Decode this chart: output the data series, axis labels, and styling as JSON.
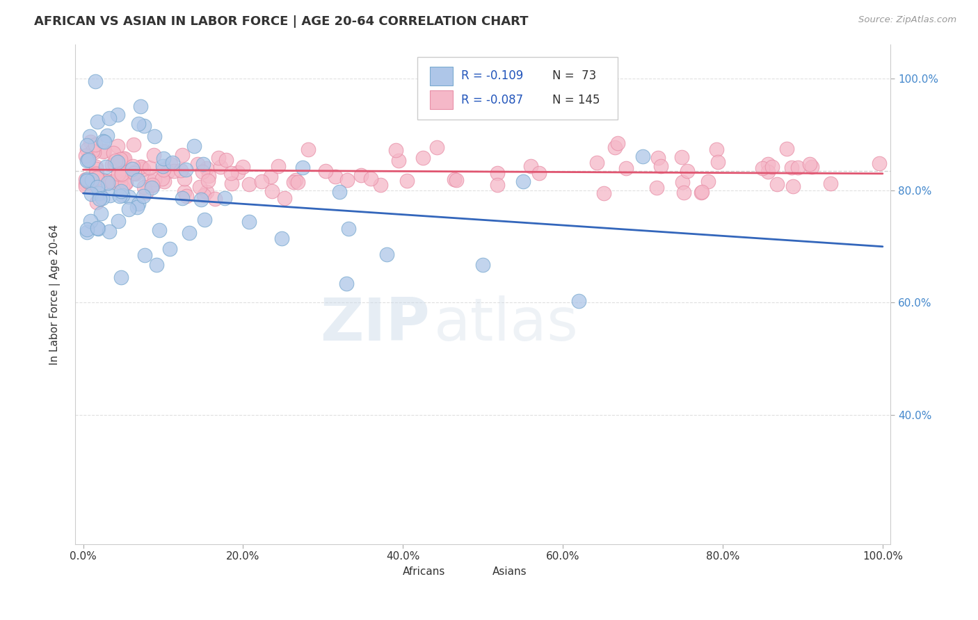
{
  "title": "AFRICAN VS ASIAN IN LABOR FORCE | AGE 20-64 CORRELATION CHART",
  "source_text": "Source: ZipAtlas.com",
  "ylabel": "In Labor Force | Age 20-64",
  "xlim": [
    -0.01,
    1.01
  ],
  "ylim": [
    0.17,
    1.06
  ],
  "xticks": [
    0.0,
    0.2,
    0.4,
    0.6,
    0.8,
    1.0
  ],
  "yticks": [
    0.4,
    0.6,
    0.8,
    1.0
  ],
  "xtick_labels": [
    "0.0%",
    "20.0%",
    "40.0%",
    "60.0%",
    "80.0%",
    "100.0%"
  ],
  "ytick_labels": [
    "40.0%",
    "60.0%",
    "80.0%",
    "100.0%"
  ],
  "african_color": "#aec6e8",
  "asian_color": "#f5b8c8",
  "african_edge_color": "#7aaad0",
  "asian_edge_color": "#e890a8",
  "trend_african_color": "#3366bb",
  "trend_asian_color": "#e05570",
  "trend_ref_color": "#cccccc",
  "legend_R_african": "-0.109",
  "legend_N_african": "73",
  "legend_R_asian": "-0.087",
  "legend_N_asian": "145",
  "legend_label_african": "Africans",
  "legend_label_asian": "Asians",
  "watermark": "ZIPatlas",
  "background_color": "#ffffff",
  "grid_color": "#dddddd",
  "title_color": "#333333",
  "source_color": "#999999",
  "ytick_color": "#4488cc",
  "xtick_color": "#333333",
  "ylabel_color": "#333333",
  "trend_african_start_y": 0.795,
  "trend_african_end_y": 0.7,
  "trend_asian_start_y": 0.837,
  "trend_asian_end_y": 0.83,
  "ref_line_y": 0.835
}
